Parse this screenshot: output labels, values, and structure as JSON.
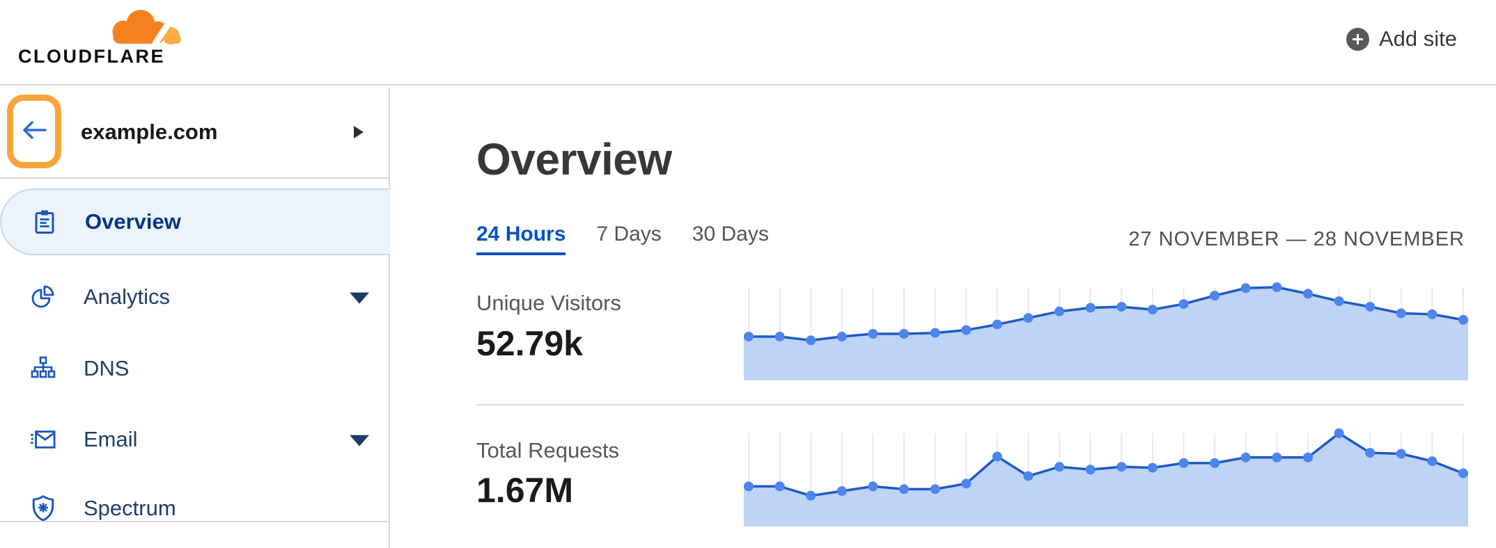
{
  "header": {
    "logo_text": "CLOUDFLARE",
    "add_site_label": "Add site"
  },
  "sidebar": {
    "site_name": "example.com",
    "items": [
      {
        "label": "Overview",
        "icon": "clipboard-icon",
        "active": true,
        "has_submenu": false
      },
      {
        "label": "Analytics",
        "icon": "pie-chart-icon",
        "active": false,
        "has_submenu": true
      },
      {
        "label": "DNS",
        "icon": "network-tree-icon",
        "active": false,
        "has_submenu": false
      },
      {
        "label": "Email",
        "icon": "envelope-icon",
        "active": false,
        "has_submenu": true
      },
      {
        "label": "Spectrum",
        "icon": "shield-icon",
        "active": false,
        "has_submenu": false
      }
    ]
  },
  "main": {
    "title": "Overview",
    "tabs": [
      {
        "label": "24 Hours",
        "active": true
      },
      {
        "label": "7 Days",
        "active": false
      },
      {
        "label": "30 Days",
        "active": false
      }
    ],
    "date_range": "27 NOVEMBER — 28 NOVEMBER",
    "metrics": [
      {
        "label": "Unique Visitors",
        "value": "52.79k"
      },
      {
        "label": "Total Requests",
        "value": "1.67M"
      }
    ]
  },
  "chart_data": [
    {
      "type": "area",
      "title": "Unique Visitors",
      "period": "24 Hours",
      "total_shown": "52.79k",
      "x_unit": "hourly points, ticks unlabeled",
      "x": [
        0,
        1,
        2,
        3,
        4,
        5,
        6,
        7,
        8,
        9,
        10,
        11,
        12,
        13,
        14,
        15,
        16,
        17,
        18,
        19,
        20,
        21,
        22,
        23
      ],
      "values_relative": [
        0.47,
        0.47,
        0.43,
        0.47,
        0.5,
        0.5,
        0.51,
        0.54,
        0.6,
        0.67,
        0.74,
        0.78,
        0.79,
        0.76,
        0.82,
        0.91,
        0.99,
        1.0,
        0.93,
        0.85,
        0.79,
        0.72,
        0.71,
        0.65
      ],
      "ylim": [
        0,
        1
      ],
      "y_axis_labeled": false,
      "grid": "vertical gridlines at each point",
      "legend": false
    },
    {
      "type": "area",
      "title": "Total Requests",
      "period": "24 Hours",
      "total_shown": "1.67M",
      "x_unit": "hourly points, ticks unlabeled",
      "x": [
        0,
        1,
        2,
        3,
        4,
        5,
        6,
        7,
        8,
        9,
        10,
        11,
        12,
        13,
        14,
        15,
        16,
        17,
        18,
        19,
        20,
        21,
        22,
        23
      ],
      "values_relative": [
        0.43,
        0.43,
        0.33,
        0.38,
        0.43,
        0.4,
        0.4,
        0.46,
        0.75,
        0.54,
        0.64,
        0.61,
        0.64,
        0.63,
        0.68,
        0.68,
        0.74,
        0.74,
        0.74,
        1.0,
        0.79,
        0.78,
        0.7,
        0.57
      ],
      "ylim": [
        0,
        1
      ],
      "y_axis_labeled": false,
      "grid": "vertical gridlines at each point",
      "legend": false
    }
  ],
  "colors": {
    "accent_blue": "#0051c3",
    "nav_icon_blue": "#1a56bd",
    "nav_text": "#203d69",
    "active_nav_text": "#003681",
    "active_nav_bg": "#edf3fb",
    "chart_line": "#2059c6",
    "chart_dot": "#4d85ee",
    "chart_fill": "#bed4f6",
    "chart_grid": "#e7eaf2",
    "annotation_orange": "#f7a43c",
    "logo_orange": "#f48120",
    "logo_orange_light": "#fbad41",
    "divider": "#d8d8d8",
    "muted_text": "#56565c",
    "heading_text": "#36393a"
  }
}
